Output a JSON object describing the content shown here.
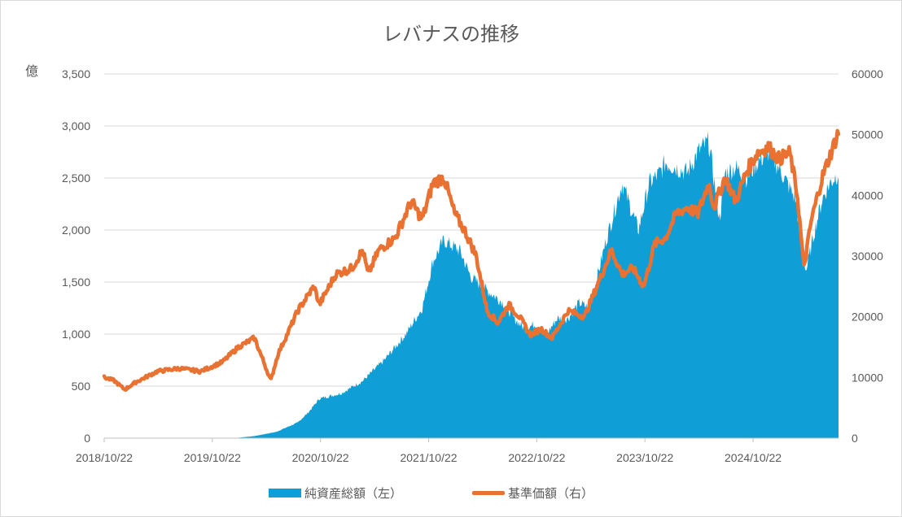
{
  "chart_data": {
    "type": "area",
    "title": "レバナスの推移",
    "y_unit_label": "億",
    "y_left_ticks": [
      "0",
      "500",
      "1,000",
      "1,500",
      "2,000",
      "2,500",
      "3,000",
      "3,500"
    ],
    "y_left_range": [
      0,
      3500
    ],
    "y_right_ticks": [
      "0",
      "10000",
      "20000",
      "30000",
      "40000",
      "50000",
      "60000"
    ],
    "y_right_range": [
      0,
      60000
    ],
    "x_tick_labels": [
      "2018/10/22",
      "2019/10/22",
      "2020/10/22",
      "2021/10/22",
      "2022/10/22",
      "2023/10/22",
      "2024/10/22"
    ],
    "x_range": [
      2018.81,
      2025.6
    ],
    "grid": true,
    "legend_position": "bottom",
    "series": [
      {
        "name": "純資産総額（左）",
        "type": "area",
        "axis": "left",
        "color": "#0f9ed5",
        "x": [
          2018.81,
          2020.01,
          2020.2,
          2020.4,
          2020.6,
          2020.7,
          2020.8,
          2021.0,
          2021.2,
          2021.4,
          2021.6,
          2021.75,
          2021.85,
          2021.95,
          2022.1,
          2022.2,
          2022.35,
          2022.5,
          2022.6,
          2022.7,
          2022.8,
          2022.9,
          2023.0,
          2023.1,
          2023.2,
          2023.3,
          2023.45,
          2023.6,
          2023.75,
          2023.85,
          2023.95,
          2024.0,
          2024.1,
          2024.2,
          2024.3,
          2024.4,
          2024.5,
          2024.55,
          2024.65,
          2024.75,
          2024.85,
          2024.95,
          2025.05,
          2025.2,
          2025.3,
          2025.38,
          2025.45,
          2025.52,
          2025.6
        ],
        "values": [
          0,
          0,
          20,
          60,
          150,
          250,
          380,
          430,
          550,
          750,
          1000,
          1250,
          1700,
          1900,
          1800,
          1550,
          1420,
          1300,
          1150,
          1050,
          1100,
          1000,
          1150,
          1150,
          1300,
          1250,
          1900,
          2450,
          2000,
          2450,
          2550,
          2650,
          2600,
          2550,
          2750,
          2850,
          2100,
          2550,
          2600,
          2500,
          2650,
          2750,
          2600,
          2300,
          1600,
          2000,
          2300,
          2450,
          2550
        ]
      },
      {
        "name": "基準価額（右）",
        "type": "line",
        "axis": "right",
        "color": "#e97132",
        "x": [
          2018.81,
          2018.9,
          2019.0,
          2019.1,
          2019.3,
          2019.5,
          2019.7,
          2019.9,
          2020.05,
          2020.2,
          2020.35,
          2020.42,
          2020.5,
          2020.6,
          2020.75,
          2020.8,
          2020.95,
          2021.1,
          2021.2,
          2021.25,
          2021.35,
          2021.5,
          2021.65,
          2021.75,
          2021.85,
          2021.95,
          2022.05,
          2022.15,
          2022.25,
          2022.35,
          2022.45,
          2022.55,
          2022.65,
          2022.75,
          2022.85,
          2022.95,
          2023.1,
          2023.25,
          2023.4,
          2023.5,
          2023.6,
          2023.7,
          2023.8,
          2023.9,
          2024.0,
          2024.1,
          2024.2,
          2024.3,
          2024.4,
          2024.45,
          2024.55,
          2024.65,
          2024.75,
          2024.85,
          2024.95,
          2025.05,
          2025.15,
          2025.22,
          2025.28,
          2025.35,
          2025.45,
          2025.55,
          2025.6
        ],
        "values": [
          10000,
          9500,
          8000,
          9200,
          11000,
          11500,
          11000,
          12500,
          15000,
          16500,
          9500,
          14000,
          17000,
          21000,
          25000,
          22000,
          27000,
          28000,
          31000,
          27000,
          31000,
          33000,
          39000,
          36000,
          42000,
          43000,
          37000,
          34000,
          30000,
          21000,
          19000,
          22000,
          20000,
          17000,
          18000,
          16500,
          21000,
          20000,
          26500,
          31000,
          27000,
          28000,
          25000,
          32000,
          33000,
          37000,
          38000,
          37000,
          42000,
          38000,
          43000,
          39000,
          44000,
          47000,
          48000,
          46000,
          47000,
          40000,
          28000,
          36000,
          43000,
          48000,
          50500
        ]
      }
    ]
  }
}
